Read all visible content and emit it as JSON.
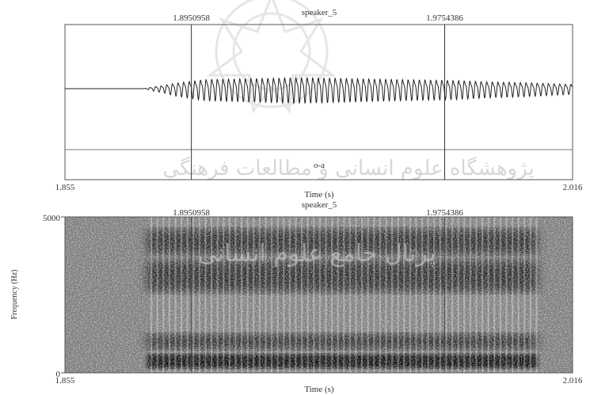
{
  "watermark": {
    "top_line": "پژوهشگاه علوم انسانی و مطالعات فرهنگی",
    "center_text": "پرتال جامع علوم انسانی"
  },
  "chart_data": [
    {
      "type": "line",
      "title": "speaker_5",
      "xlabel": "Time (s)",
      "ylabel": "",
      "xlim": [
        1.855,
        2.016
      ],
      "x_tick_labels": [
        "1.855",
        "2.016"
      ],
      "cursor_labels": [
        "1.8950958",
        "1.9754386"
      ],
      "cursors": [
        1.8950958,
        1.9754386
      ],
      "interval_label": "o-a",
      "series": [
        {
          "points": [
            [
              1.855,
              0.0
            ],
            [
              1.88,
              0.0
            ],
            [
              1.883,
              0.15
            ],
            [
              1.886,
              0.25
            ],
            [
              1.89,
              0.45
            ],
            [
              1.895,
              0.6
            ],
            [
              1.9,
              0.75
            ],
            [
              1.91,
              0.8
            ],
            [
              1.92,
              0.85
            ],
            [
              1.93,
              0.9
            ],
            [
              1.94,
              0.85
            ],
            [
              1.95,
              0.8
            ],
            [
              1.96,
              0.75
            ],
            [
              1.97,
              0.7
            ],
            [
              1.98,
              0.65
            ],
            [
              1.99,
              0.55
            ],
            [
              2.0,
              0.5
            ],
            [
              2.01,
              0.4
            ],
            [
              2.016,
              0.35
            ]
          ]
        }
      ]
    },
    {
      "type": "heatmap",
      "title": "speaker_5",
      "xlabel": "Time (s)",
      "ylabel": "Frequency (Hz)",
      "xlim": [
        1.855,
        2.016
      ],
      "ylim": [
        0,
        5000
      ],
      "x_tick_labels": [
        "1.855",
        "2.016"
      ],
      "y_tick_labels": [
        "0",
        "5000"
      ],
      "cursor_labels": [
        "1.8950958",
        "1.9754386"
      ],
      "cursors": [
        1.8950958,
        1.9754386
      ],
      "voicing_start": 1.881,
      "voicing_end": 2.005,
      "energy_bands_hz": [
        {
          "low": 150,
          "high": 600,
          "level": "dark"
        },
        {
          "low": 750,
          "high": 1250,
          "level": "medium"
        },
        {
          "low": 2600,
          "high": 3600,
          "level": "medium"
        },
        {
          "low": 3800,
          "high": 4600,
          "level": "medium"
        }
      ]
    }
  ]
}
